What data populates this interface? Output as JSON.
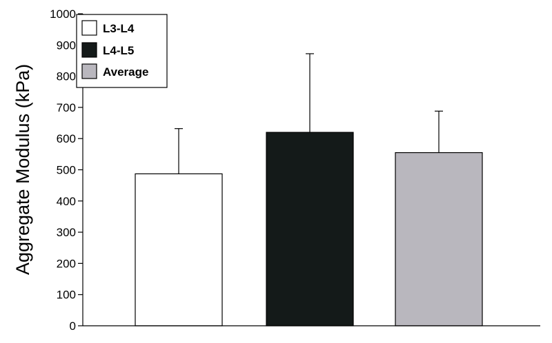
{
  "chart_data": {
    "type": "bar",
    "title": "",
    "xlabel": "",
    "ylabel": "Aggregate Modulus (kPa)",
    "ylim": [
      0,
      1000
    ],
    "yticks": [
      "0",
      "100",
      "200",
      "300",
      "400",
      "500",
      "600",
      "700",
      "800",
      "900",
      "1000"
    ],
    "legend_position": "top-left",
    "grid": false,
    "categories": [
      "L3-L4",
      "L4-L5",
      "Average"
    ],
    "values": [
      487,
      620,
      555
    ],
    "error_plus": [
      145,
      252,
      133
    ],
    "colors": [
      "#ffffff",
      "#141a19",
      "#b9b7be"
    ]
  }
}
